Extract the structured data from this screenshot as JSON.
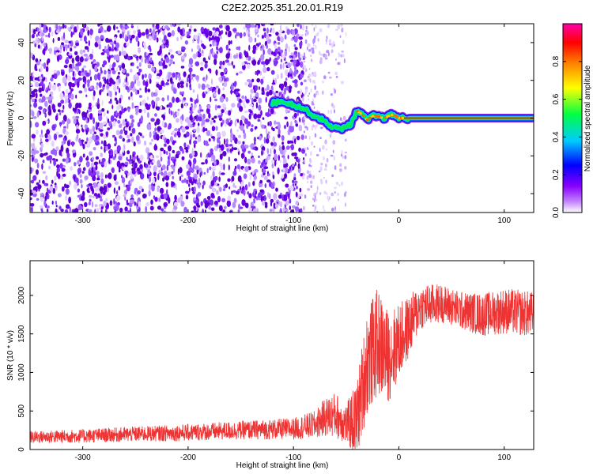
{
  "title": "C2E2.2025.351.20.01.R19",
  "chart_data": [
    {
      "type": "heatmap",
      "name": "spectrogram",
      "xlabel": "Height of straight line (km)",
      "ylabel": "Frequency (Hz)",
      "xlim": [
        -350,
        128
      ],
      "ylim": [
        -50,
        50
      ],
      "xticks": [
        -300,
        -200,
        -100,
        0,
        100
      ],
      "yticks": [
        -40,
        -20,
        0,
        20,
        40
      ],
      "noise_region_km": [
        -350,
        -90
      ],
      "sparse_noise_region_km": [
        -90,
        -50
      ],
      "signal_track": {
        "x": [
          -120,
          -110,
          -100,
          -95,
          -90,
          -85,
          -80,
          -75,
          -70,
          -65,
          -60,
          -55,
          -50,
          -45,
          -40,
          -35,
          -30,
          -25,
          -20,
          -15,
          -10,
          -5,
          0,
          10,
          128
        ],
        "y": [
          8,
          9,
          7,
          6,
          5,
          3,
          1,
          0,
          -2,
          -4,
          -5,
          -6,
          -4,
          -3,
          4,
          2,
          -1,
          1,
          1,
          0,
          1,
          2,
          0,
          0,
          0
        ]
      },
      "colorbar": {
        "label": "Normalized spectral amplitude",
        "range": [
          0.0,
          1.0
        ],
        "ticks": [
          "0.0",
          "0.2",
          "0.4",
          "0.6",
          "0.8"
        ],
        "colors": [
          "#ffffff",
          "#8800ff",
          "#0000ff",
          "#00ccff",
          "#00ff66",
          "#ffff00",
          "#ff8800",
          "#ff0000",
          "#ff00aa"
        ]
      }
    },
    {
      "type": "line",
      "name": "snr",
      "xlabel": "Height of straight line (km)",
      "ylabel": "SNR (10 * v/v)",
      "xlim": [
        -350,
        128
      ],
      "ylim": [
        0,
        2450
      ],
      "xticks": [
        -300,
        -200,
        -100,
        0,
        100
      ],
      "yticks": [
        0,
        500,
        1000,
        1500,
        2000
      ],
      "color": "#ee3333",
      "series_envelope": {
        "x": [
          -350,
          -300,
          -250,
          -200,
          -150,
          -100,
          -80,
          -70,
          -60,
          -50,
          -40,
          -30,
          -20,
          -10,
          0,
          10,
          20,
          40,
          60,
          80,
          100,
          128
        ],
        "mean": [
          160,
          175,
          200,
          220,
          250,
          270,
          320,
          420,
          450,
          330,
          380,
          1150,
          1400,
          1200,
          1400,
          1600,
          1850,
          1900,
          1800,
          1750,
          1800,
          1750
        ],
        "spread": [
          80,
          90,
          100,
          110,
          120,
          140,
          180,
          250,
          300,
          260,
          500,
          700,
          700,
          600,
          500,
          400,
          300,
          250,
          250,
          280,
          300,
          300
        ]
      }
    }
  ]
}
